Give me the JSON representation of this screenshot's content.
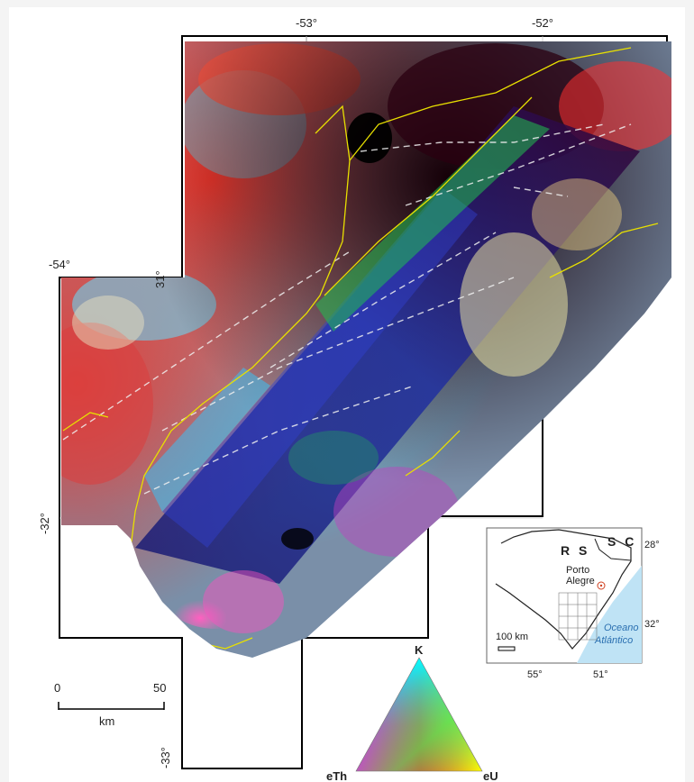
{
  "map": {
    "coords": {
      "lon_top_left": "-53°",
      "lon_top_right": "-52°",
      "lon_left": "-54°",
      "lat_small": "31°",
      "lat_mid": "-32°",
      "lat_bottom": "-33°"
    },
    "scale_bar": {
      "start": "0",
      "end": "50",
      "unit": "km"
    },
    "ternary": {
      "top": "K",
      "left": "eTh",
      "right": "eU"
    },
    "inset": {
      "state_rs": "R S",
      "state_sc": "S C",
      "lat_28": "28°",
      "lat_32": "32°",
      "city_1": "Porto",
      "city_2": "Alegre",
      "ocean_1": "Oceano",
      "ocean_2": "Atlántico",
      "scale": "100 km",
      "lon_55": "55°",
      "lon_51": "51°"
    },
    "colors": {
      "ocean": "#bfe3f5",
      "boundary": "#e8e000",
      "frame": "#000000"
    }
  }
}
